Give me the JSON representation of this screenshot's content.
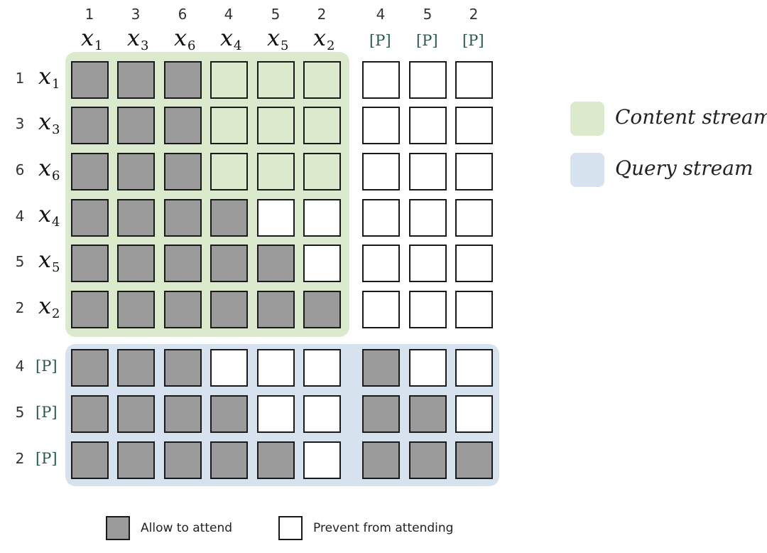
{
  "colors": {
    "allow": "#9b9b9b",
    "prevent": "#ffffff",
    "content_stream": "#dbe9cc",
    "query_stream": "#d6e2ee",
    "border": "#1a1a1a"
  },
  "columns": [
    {
      "order": "1",
      "token": "x",
      "sub": "1"
    },
    {
      "order": "3",
      "token": "x",
      "sub": "3"
    },
    {
      "order": "6",
      "token": "x",
      "sub": "6"
    },
    {
      "order": "4",
      "token": "x",
      "sub": "4"
    },
    {
      "order": "5",
      "token": "x",
      "sub": "5"
    },
    {
      "order": "2",
      "token": "x",
      "sub": "2"
    },
    {
      "order": "4",
      "token": "[P]",
      "sub": ""
    },
    {
      "order": "5",
      "token": "[P]",
      "sub": ""
    },
    {
      "order": "2",
      "token": "[P]",
      "sub": ""
    }
  ],
  "rows": [
    {
      "order": "1",
      "token": "x",
      "sub": "1",
      "mask": [
        1,
        1,
        1,
        0,
        0,
        0,
        0,
        0,
        0
      ]
    },
    {
      "order": "3",
      "token": "x",
      "sub": "3",
      "mask": [
        1,
        1,
        1,
        0,
        0,
        0,
        0,
        0,
        0
      ]
    },
    {
      "order": "6",
      "token": "x",
      "sub": "6",
      "mask": [
        1,
        1,
        1,
        0,
        0,
        0,
        0,
        0,
        0
      ]
    },
    {
      "order": "4",
      "token": "x",
      "sub": "4",
      "mask": [
        1,
        1,
        1,
        1,
        0,
        0,
        0,
        0,
        0
      ]
    },
    {
      "order": "5",
      "token": "x",
      "sub": "5",
      "mask": [
        1,
        1,
        1,
        1,
        1,
        0,
        0,
        0,
        0
      ]
    },
    {
      "order": "2",
      "token": "x",
      "sub": "2",
      "mask": [
        1,
        1,
        1,
        1,
        1,
        1,
        0,
        0,
        0
      ]
    },
    {
      "order": "4",
      "token": "[P]",
      "sub": "",
      "mask": [
        1,
        1,
        1,
        0,
        0,
        0,
        1,
        0,
        0
      ]
    },
    {
      "order": "5",
      "token": "[P]",
      "sub": "",
      "mask": [
        1,
        1,
        1,
        1,
        0,
        0,
        1,
        1,
        0
      ]
    },
    {
      "order": "2",
      "token": "[P]",
      "sub": "",
      "mask": [
        1,
        1,
        1,
        1,
        1,
        0,
        1,
        1,
        1
      ]
    }
  ],
  "legend": {
    "content_stream": "Content stream",
    "query_stream": "Query stream"
  },
  "key": {
    "allow": "Allow to attend",
    "prevent": "Prevent from attending"
  }
}
